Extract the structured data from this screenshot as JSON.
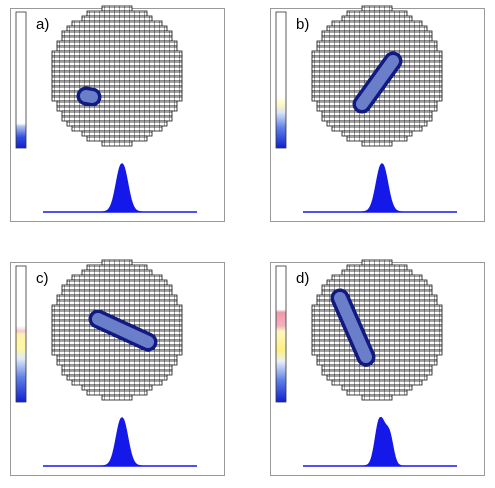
{
  "panels": [
    {
      "label": "a)"
    },
    {
      "label": "b)"
    },
    {
      "label": "c)"
    },
    {
      "label": "d)"
    }
  ]
}
